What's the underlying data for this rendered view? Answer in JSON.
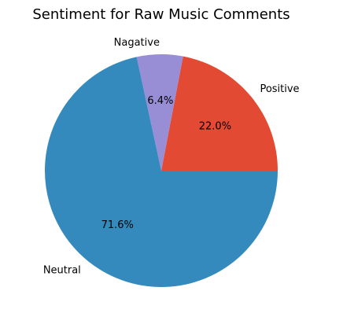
{
  "chart_data": {
    "type": "pie",
    "title": "Sentiment for Raw Music Comments",
    "labels": [
      "Positive",
      "Nagative",
      "Neutral"
    ],
    "values": [
      22.0,
      6.4,
      71.6
    ],
    "value_labels": [
      "22.0%",
      "6.4%",
      "71.6%"
    ],
    "colors": [
      "#E24A33",
      "#988ED5",
      "#348ABD"
    ],
    "start_angle_deg": 0,
    "direction": "counterclockwise"
  }
}
